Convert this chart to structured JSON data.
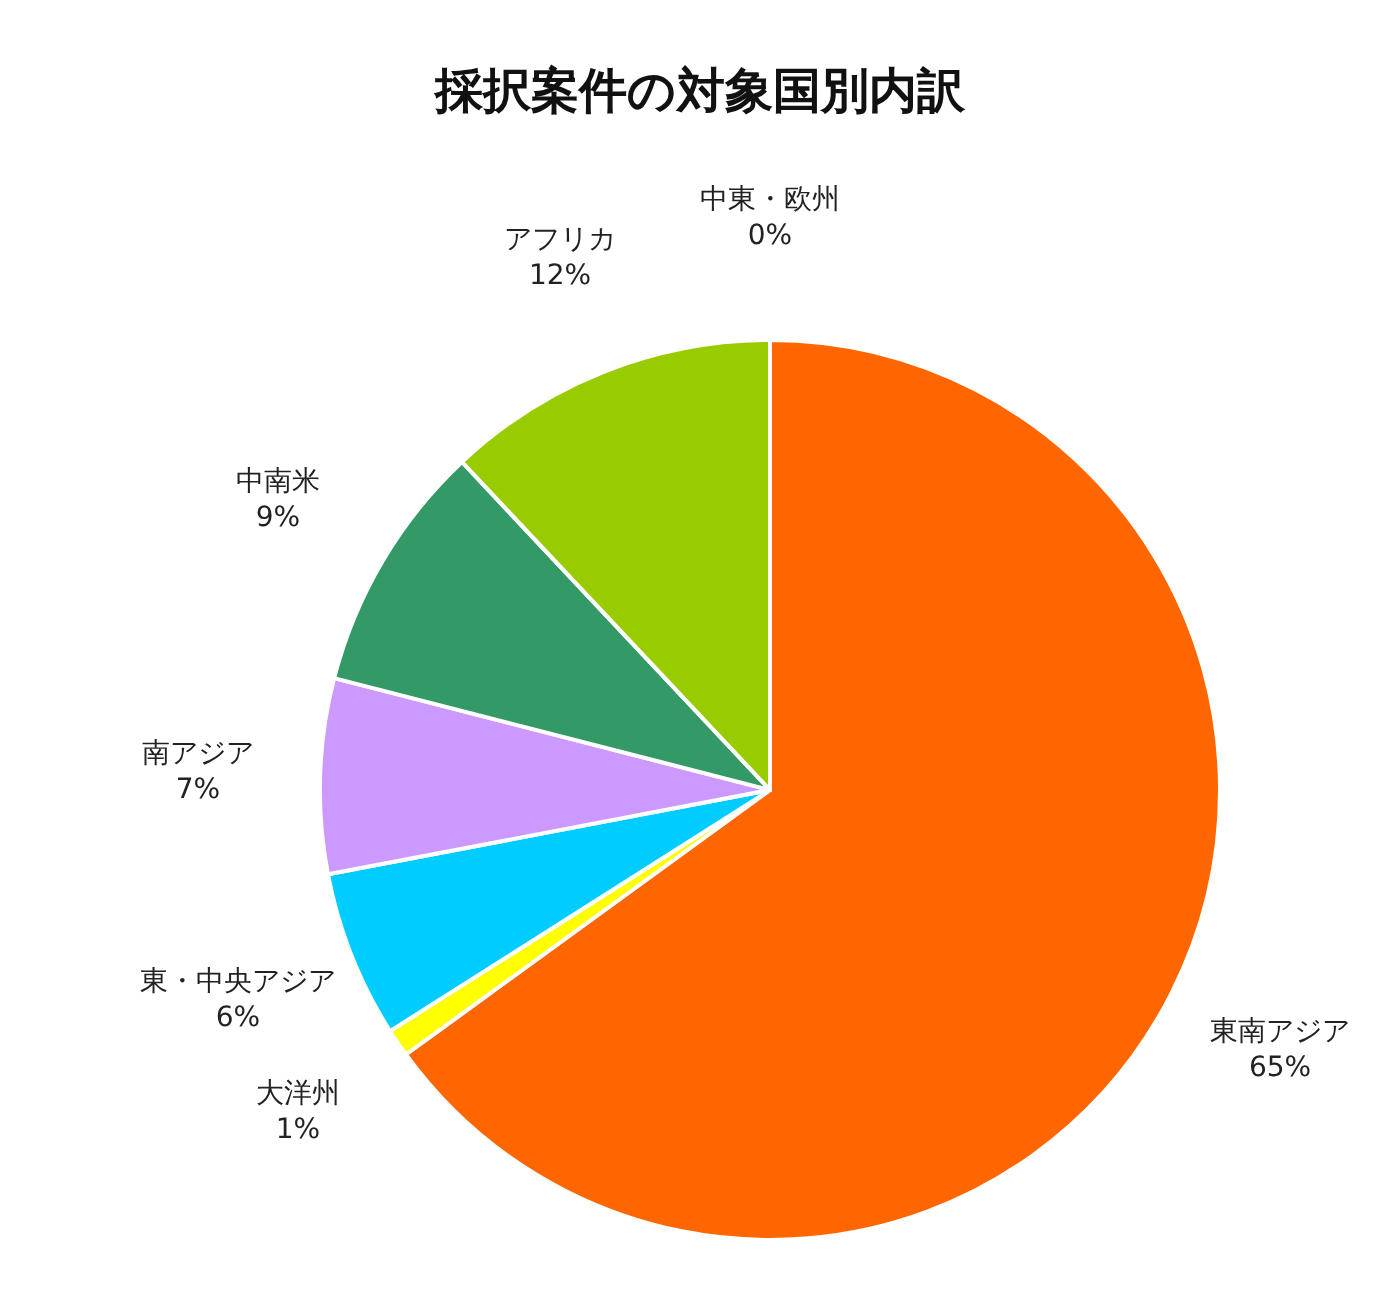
{
  "chart_data": {
    "type": "pie",
    "title": "採択案件の対象国別内訳",
    "categories": [
      "東南アジア",
      "大洋州",
      "東・中央アジア",
      "南アジア",
      "中南米",
      "アフリカ",
      "中東・欧州"
    ],
    "values": [
      65,
      1,
      6,
      7,
      9,
      12,
      0
    ],
    "value_labels": [
      "65%",
      "1%",
      "6%",
      "7%",
      "9%",
      "12%",
      "0%"
    ],
    "colors": [
      "#ff6600",
      "#ffff00",
      "#00ccff",
      "#cc99ff",
      "#339966",
      "#99cc00",
      "#c0c0c0"
    ],
    "legend": false
  }
}
